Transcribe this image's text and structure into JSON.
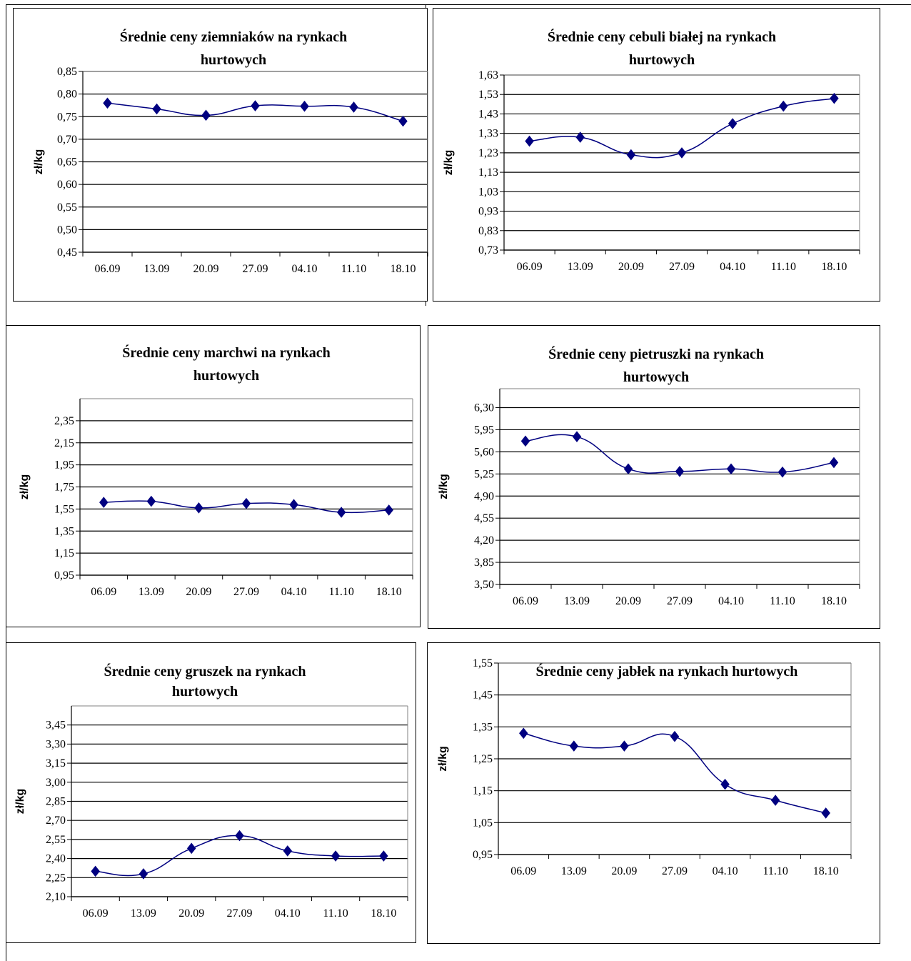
{
  "accent_color": "#000080",
  "chart_data": [
    {
      "type": "line",
      "title": [
        "Średnie ceny ziemniaków  na rynkach",
        "hurtowych"
      ],
      "ylabel": "zł/kg",
      "xlabel": "",
      "categories": [
        "06.09",
        "13.09",
        "20.09",
        "27.09",
        "04.10",
        "11.10",
        "18.10"
      ],
      "yticks": [
        "0,45",
        "0,50",
        "0,55",
        "0,60",
        "0,65",
        "0,70",
        "0,75",
        "0,80",
        "0,85"
      ],
      "ylim": [
        0.45,
        0.85
      ],
      "grid": true,
      "marker": "diamond",
      "series": [
        {
          "values": [
            0.78,
            0.767,
            0.753,
            0.774,
            0.773,
            0.771,
            0.74
          ]
        }
      ]
    },
    {
      "type": "line",
      "title": [
        "Średnie ceny cebuli białej na rynkach",
        "hurtowych"
      ],
      "ylabel": "zł/kg",
      "xlabel": "",
      "categories": [
        "06.09",
        "13.09",
        "20.09",
        "27.09",
        "04.10",
        "11.10",
        "18.10"
      ],
      "yticks": [
        "0,73",
        "0,83",
        "0,93",
        "1,03",
        "1,13",
        "1,23",
        "1,33",
        "1,43",
        "1,53",
        "1,63"
      ],
      "ylim": [
        0.73,
        1.63
      ],
      "grid": true,
      "marker": "diamond",
      "series": [
        {
          "values": [
            1.29,
            1.31,
            1.22,
            1.23,
            1.38,
            1.47,
            1.51
          ]
        }
      ]
    },
    {
      "type": "line",
      "title": [
        "Średnie ceny marchwi  na rynkach",
        "hurtowych"
      ],
      "ylabel": "zł/kg",
      "xlabel": "",
      "categories": [
        "06.09",
        "13.09",
        "20.09",
        "27.09",
        "04.10",
        "11.10",
        "18.10"
      ],
      "yticks": [
        "0,95",
        "1,15",
        "1,35",
        "1,55",
        "1,75",
        "1,95",
        "2,15",
        "2,35"
      ],
      "ylim": [
        0.95,
        2.55
      ],
      "grid": true,
      "marker": "diamond",
      "series": [
        {
          "values": [
            1.61,
            1.62,
            1.56,
            1.6,
            1.59,
            1.52,
            1.54
          ]
        }
      ]
    },
    {
      "type": "line",
      "title": [
        "Średnie ceny pietruszki na rynkach",
        "hurtowych"
      ],
      "ylabel": "zł/kg",
      "xlabel": "",
      "categories": [
        "06.09",
        "13.09",
        "20.09",
        "27.09",
        "04.10",
        "11.10",
        "18.10"
      ],
      "yticks": [
        "3,50",
        "3,85",
        "4,20",
        "4,55",
        "4,90",
        "5,25",
        "5,60",
        "5,95",
        "6,30"
      ],
      "ylim": [
        3.5,
        6.6
      ],
      "grid": true,
      "marker": "diamond",
      "series": [
        {
          "values": [
            5.77,
            5.84,
            5.33,
            5.29,
            5.33,
            5.28,
            5.43
          ]
        }
      ]
    },
    {
      "type": "line",
      "title": [
        "Średnie ceny gruszek na rynkach",
        "hurtowych"
      ],
      "ylabel": "zł/kg",
      "xlabel": "",
      "categories": [
        "06.09",
        "13.09",
        "20.09",
        "27.09",
        "04.10",
        "11.10",
        "18.10"
      ],
      "yticks": [
        "2,10",
        "2,25",
        "2,40",
        "2,55",
        "2,70",
        "2,85",
        "3,00",
        "3,15",
        "3,30",
        "3,45"
      ],
      "ylim": [
        2.1,
        3.6
      ],
      "grid": true,
      "marker": "diamond",
      "series": [
        {
          "values": [
            2.3,
            2.28,
            2.48,
            2.58,
            2.46,
            2.42,
            2.42
          ]
        }
      ]
    },
    {
      "type": "line",
      "title": [
        "Średnie ceny jabłek  na rynkach hurtowych"
      ],
      "ylabel": "zł/kg",
      "xlabel": "",
      "categories": [
        "06.09",
        "13.09",
        "20.09",
        "27.09",
        "04.10",
        "11.10",
        "18.10"
      ],
      "yticks": [
        "0,95",
        "1,05",
        "1,15",
        "1,25",
        "1,35",
        "1,45",
        "1,55"
      ],
      "ylim": [
        0.95,
        1.55
      ],
      "grid": true,
      "marker": "diamond",
      "series": [
        {
          "values": [
            1.33,
            1.29,
            1.29,
            1.32,
            1.17,
            1.12,
            1.08
          ]
        }
      ]
    }
  ]
}
